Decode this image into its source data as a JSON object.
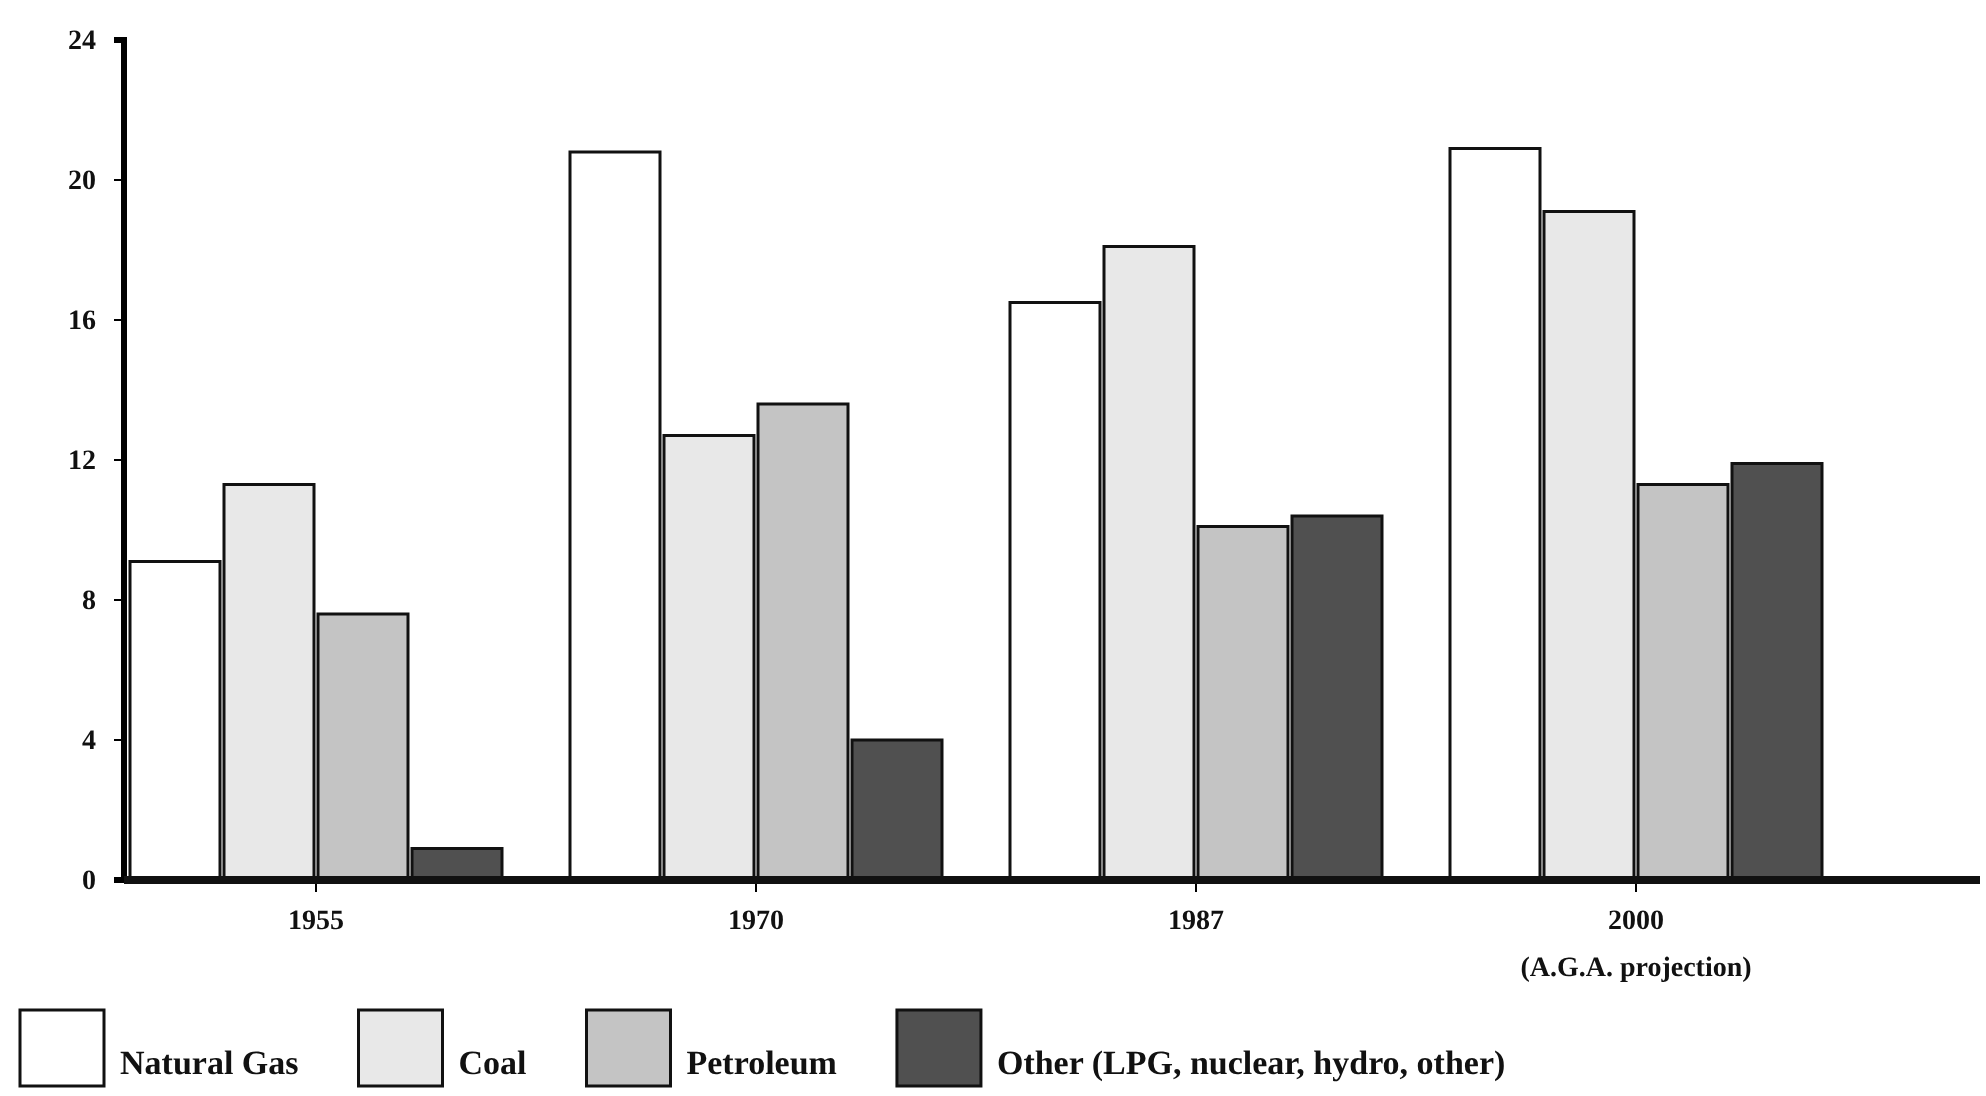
{
  "chart_data": {
    "type": "bar",
    "categories": [
      "1955",
      "1970",
      "1987",
      "2000"
    ],
    "series": [
      {
        "name": "Natural Gas",
        "color": "#ffffff",
        "values": [
          9.1,
          20.8,
          16.5,
          20.9
        ]
      },
      {
        "name": "Coal",
        "color": "#e8e8e8",
        "values": [
          11.3,
          12.7,
          18.1,
          19.1
        ]
      },
      {
        "name": "Petroleum",
        "color": "#c4c4c4",
        "values": [
          7.6,
          13.6,
          10.1,
          11.3
        ]
      },
      {
        "name": "Other (LPG, nuclear, hydro, other)",
        "color": "#505050",
        "values": [
          0.9,
          4,
          10.4,
          11.9
        ]
      }
    ],
    "ylim": [
      0,
      24
    ],
    "yticks": [
      0,
      4,
      8,
      12,
      16,
      20,
      24
    ],
    "grid": false,
    "legend": "bottom",
    "annotations": [
      "(A.G.A. projection)"
    ]
  }
}
